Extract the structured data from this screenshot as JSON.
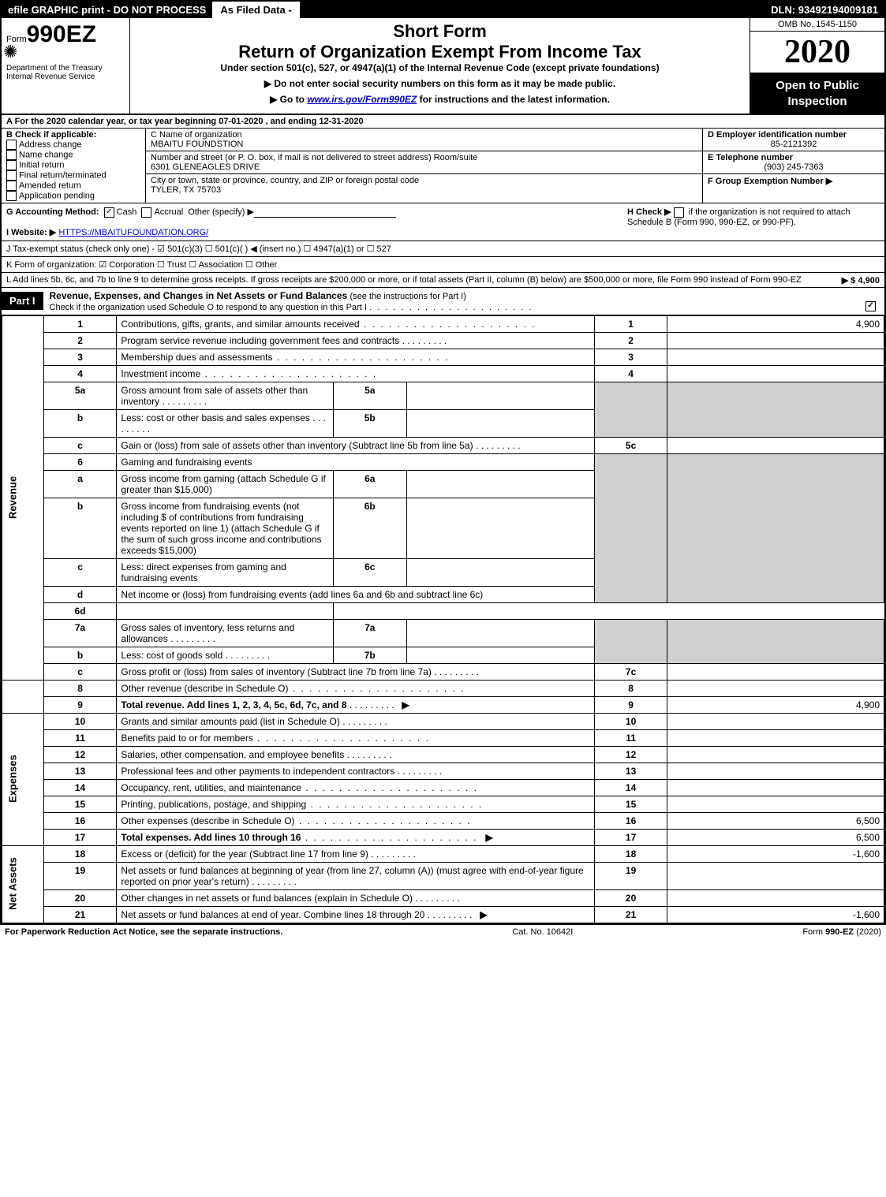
{
  "top": {
    "efile": "efile GRAPHIC print - DO NOT PROCESS",
    "asfiled": "As Filed Data -",
    "dln": "DLN: 93492194009181"
  },
  "header": {
    "form_prefix": "Form",
    "form_number": "990EZ",
    "dept": "Department of the Treasury",
    "irs": "Internal Revenue Service",
    "short_form": "Short Form",
    "title": "Return of Organization Exempt From Income Tax",
    "subtitle": "Under section 501(c), 527, or 4947(a)(1) of the Internal Revenue Code (except private foundations)",
    "instr1": "▶ Do not enter social security numbers on this form as it may be made public.",
    "instr2_pre": "▶ Go to ",
    "instr2_link": "www.irs.gov/Form990EZ",
    "instr2_post": " for instructions and the latest information.",
    "omb": "OMB No. 1545-1150",
    "year": "2020",
    "open": "Open to Public Inspection"
  },
  "rowA": "A  For the 2020 calendar year, or tax year beginning 07-01-2020 , and ending 12-31-2020",
  "sectionB": {
    "label": "B  Check if applicable:",
    "items": [
      "Address change",
      "Name change",
      "Initial return",
      "Final return/terminated",
      "Amended return",
      "Application pending"
    ]
  },
  "sectionC": {
    "label": "C Name of organization",
    "name": "MBAITU FOUNDSTION",
    "street_label": "Number and street (or P. O. box, if mail is not delivered to street address)  Room/suite",
    "street": "6301 GLENEAGLES DRIVE",
    "city_label": "City or town, state or province, country, and ZIP or foreign postal code",
    "city": "TYLER, TX  75703"
  },
  "sectionD": {
    "label": "D Employer identification number",
    "value": "85-2121392",
    "e_label": "E Telephone number",
    "e_value": "(903) 245-7363",
    "f_label": "F Group Exemption Number  ▶"
  },
  "rowG": {
    "left_label": "G Accounting Method:",
    "cash": "Cash",
    "accrual": "Accrual",
    "other": "Other (specify) ▶",
    "h_label": "H  Check ▶",
    "h_text": "if the organization is not required to attach Schedule B (Form 990, 990-EZ, or 990-PF)."
  },
  "rowI": {
    "label": "I Website: ▶",
    "value": "HTTPS://MBAITUFOUNDATION.ORG/"
  },
  "rowJ": "J Tax-exempt status (check only one) - ☑ 501(c)(3)   ☐ 501(c)(  ) ◀ (insert no.)  ☐ 4947(a)(1) or  ☐ 527",
  "rowK": "K Form of organization:   ☑ Corporation   ☐ Trust   ☐ Association   ☐ Other",
  "rowL": {
    "text": "L Add lines 5b, 6c, and 7b to line 9 to determine gross receipts. If gross receipts are $200,000 or more, or if total assets (Part II, column (B) below) are $500,000 or more, file Form 990 instead of Form 990-EZ",
    "value": "▶ $ 4,900"
  },
  "part1": {
    "label": "Part I",
    "title": "Revenue, Expenses, and Changes in Net Assets or Fund Balances",
    "sub": "(see the instructions for Part I)",
    "check": "Check if the organization used Schedule O to respond to any question in this Part I"
  },
  "sidelabels": {
    "revenue": "Revenue",
    "expenses": "Expenses",
    "netassets": "Net Assets"
  },
  "lines": {
    "1": {
      "desc": "Contributions, gifts, grants, and similar amounts received",
      "val": "4,900"
    },
    "2": {
      "desc": "Program service revenue including government fees and contracts",
      "val": ""
    },
    "3": {
      "desc": "Membership dues and assessments",
      "val": ""
    },
    "4": {
      "desc": "Investment income",
      "val": ""
    },
    "5a": {
      "desc": "Gross amount from sale of assets other than inventory"
    },
    "5b": {
      "desc": "Less: cost or other basis and sales expenses"
    },
    "5c": {
      "desc": "Gain or (loss) from sale of assets other than inventory (Subtract line 5b from line 5a)",
      "val": ""
    },
    "6": {
      "desc": "Gaming and fundraising events"
    },
    "6a": {
      "desc": "Gross income from gaming (attach Schedule G if greater than $15,000)"
    },
    "6b": {
      "desc": "Gross income from fundraising events (not including $                     of contributions from fundraising events reported on line 1) (attach Schedule G if the sum of such gross income and contributions exceeds $15,000)"
    },
    "6c": {
      "desc": "Less: direct expenses from gaming and fundraising events"
    },
    "6d": {
      "desc": "Net income or (loss) from fundraising events (add lines 6a and 6b and subtract line 6c)",
      "val": ""
    },
    "7a": {
      "desc": "Gross sales of inventory, less returns and allowances"
    },
    "7b": {
      "desc": "Less: cost of goods sold"
    },
    "7c": {
      "desc": "Gross profit or (loss) from sales of inventory (Subtract line 7b from line 7a)",
      "val": ""
    },
    "8": {
      "desc": "Other revenue (describe in Schedule O)",
      "val": ""
    },
    "9": {
      "desc": "Total revenue. Add lines 1, 2, 3, 4, 5c, 6d, 7c, and 8",
      "val": "4,900"
    },
    "10": {
      "desc": "Grants and similar amounts paid (list in Schedule O)",
      "val": ""
    },
    "11": {
      "desc": "Benefits paid to or for members",
      "val": ""
    },
    "12": {
      "desc": "Salaries, other compensation, and employee benefits",
      "val": ""
    },
    "13": {
      "desc": "Professional fees and other payments to independent contractors",
      "val": ""
    },
    "14": {
      "desc": "Occupancy, rent, utilities, and maintenance",
      "val": ""
    },
    "15": {
      "desc": "Printing, publications, postage, and shipping",
      "val": ""
    },
    "16": {
      "desc": "Other expenses (describe in Schedule O)",
      "val": "6,500"
    },
    "17": {
      "desc": "Total expenses. Add lines 10 through 16",
      "val": "6,500"
    },
    "18": {
      "desc": "Excess or (deficit) for the year (Subtract line 17 from line 9)",
      "val": "-1,600"
    },
    "19": {
      "desc": "Net assets or fund balances at beginning of year (from line 27, column (A)) (must agree with end-of-year figure reported on prior year's return)",
      "val": ""
    },
    "20": {
      "desc": "Other changes in net assets or fund balances (explain in Schedule O)",
      "val": ""
    },
    "21": {
      "desc": "Net assets or fund balances at end of year. Combine lines 18 through 20",
      "val": "-1,600"
    }
  },
  "footer": {
    "left": "For Paperwork Reduction Act Notice, see the separate instructions.",
    "center": "Cat. No. 10642I",
    "right": "Form 990-EZ (2020)"
  }
}
